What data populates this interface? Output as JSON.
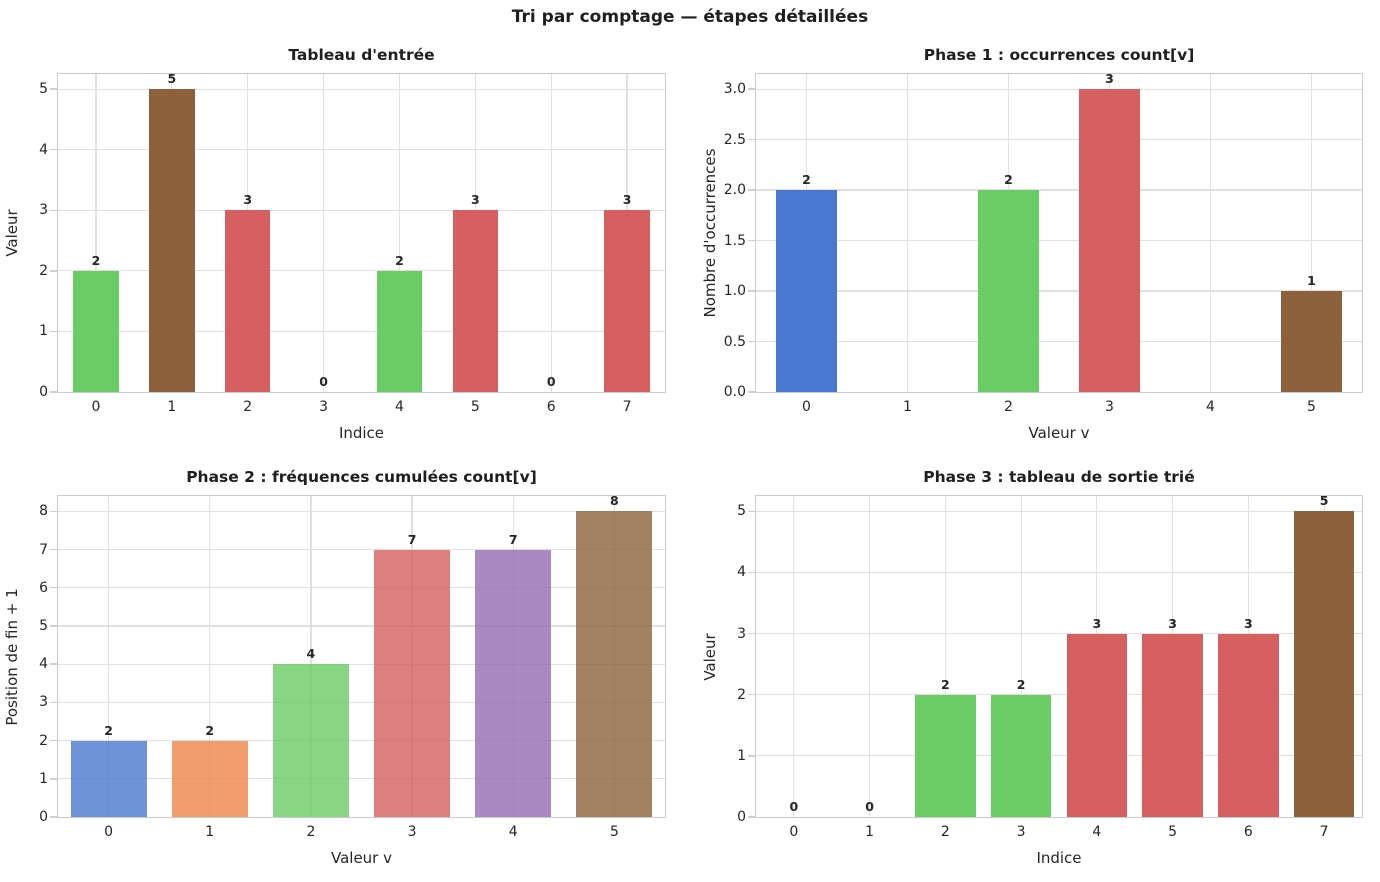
{
  "figure_title": "Tri par comptage — étapes détaillées",
  "palette": {
    "blue": "#4878D0",
    "orange": "#EE854A",
    "green": "#6ACC64",
    "red": "#D65F5F",
    "purple": "#956CB4",
    "brown": "#8C613C"
  },
  "chart_data": [
    {
      "id": "input",
      "type": "bar",
      "title": "Tableau d'entrée",
      "xlabel": "Indice",
      "ylabel": "Valeur",
      "categories": [
        "0",
        "1",
        "2",
        "3",
        "4",
        "5",
        "6",
        "7"
      ],
      "values": [
        2,
        5,
        3,
        0,
        2,
        3,
        0,
        3
      ],
      "bar_labels": [
        "2",
        "5",
        "3",
        "0",
        "2",
        "3",
        "0",
        "3"
      ],
      "colors": [
        "#6ACC64",
        "#8C613C",
        "#D65F5F",
        null,
        "#6ACC64",
        "#D65F5F",
        null,
        "#D65F5F"
      ],
      "yticks": [
        0,
        1,
        2,
        3,
        4,
        5
      ],
      "ytick_labels": [
        "0",
        "1",
        "2",
        "3",
        "4",
        "5"
      ],
      "ylim": [
        0,
        5.25
      ],
      "grid": true,
      "bar_width_frac": 0.6,
      "bar_alpha": 1
    },
    {
      "id": "phase1",
      "type": "bar",
      "title": "Phase 1 : occurrences count[v]",
      "xlabel": "Valeur v",
      "ylabel": "Nombre d'occurrences",
      "categories": [
        "0",
        "1",
        "2",
        "3",
        "4",
        "5"
      ],
      "values": [
        2,
        0,
        2,
        3,
        0,
        1
      ],
      "bar_labels": [
        "2",
        "",
        "2",
        "3",
        "",
        "1"
      ],
      "colors": [
        "#4878D0",
        null,
        "#6ACC64",
        "#D65F5F",
        null,
        "#8C613C"
      ],
      "yticks": [
        0,
        0.5,
        1,
        1.5,
        2,
        2.5,
        3
      ],
      "ytick_labels": [
        "0.0",
        "0.5",
        "1.0",
        "1.5",
        "2.0",
        "2.5",
        "3.0"
      ],
      "ylim": [
        0,
        3.15
      ],
      "grid": true,
      "bar_width_frac": 0.6,
      "bar_alpha": 1
    },
    {
      "id": "phase2",
      "type": "bar",
      "title": "Phase 2 : fréquences cumulées count[v]",
      "xlabel": "Valeur v",
      "ylabel": "Position de fin + 1",
      "categories": [
        "0",
        "1",
        "2",
        "3",
        "4",
        "5"
      ],
      "values": [
        2,
        2,
        4,
        7,
        7,
        8
      ],
      "bar_labels": [
        "2",
        "2",
        "4",
        "7",
        "7",
        "8"
      ],
      "colors": [
        "#4878D0",
        "#EE854A",
        "#6ACC64",
        "#D65F5F",
        "#956CB4",
        "#8C613C"
      ],
      "yticks": [
        0,
        1,
        2,
        3,
        4,
        5,
        6,
        7,
        8
      ],
      "ytick_labels": [
        "0",
        "1",
        "2",
        "3",
        "4",
        "5",
        "6",
        "7",
        "8"
      ],
      "ylim": [
        0,
        8.4
      ],
      "grid": true,
      "bar_width_frac": 0.75,
      "bar_alpha": 0.8
    },
    {
      "id": "phase3",
      "type": "bar",
      "title": "Phase 3 : tableau de sortie trié",
      "xlabel": "Indice",
      "ylabel": "Valeur",
      "categories": [
        "0",
        "1",
        "2",
        "3",
        "4",
        "5",
        "6",
        "7"
      ],
      "values": [
        0,
        0,
        2,
        2,
        3,
        3,
        3,
        5
      ],
      "bar_labels": [
        "0",
        "0",
        "2",
        "2",
        "3",
        "3",
        "3",
        "5"
      ],
      "colors": [
        null,
        null,
        "#6ACC64",
        "#6ACC64",
        "#D65F5F",
        "#D65F5F",
        "#D65F5F",
        "#8C613C"
      ],
      "yticks": [
        0,
        1,
        2,
        3,
        4,
        5
      ],
      "ytick_labels": [
        "0",
        "1",
        "2",
        "3",
        "4",
        "5"
      ],
      "ylim": [
        0,
        5.25
      ],
      "grid": true,
      "bar_width_frac": 0.8,
      "bar_alpha": 1
    }
  ]
}
